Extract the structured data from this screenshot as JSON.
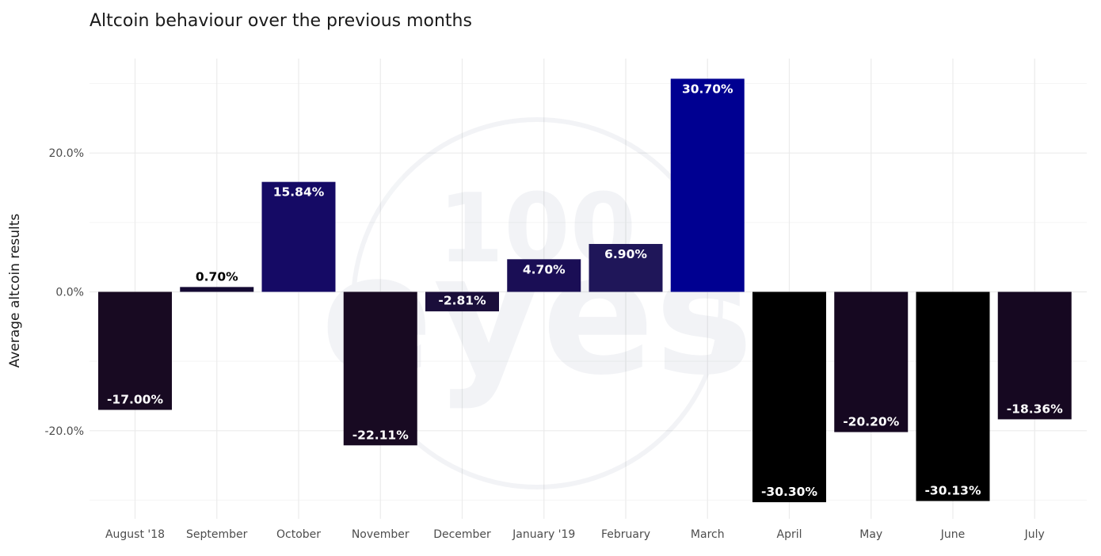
{
  "chart_data": {
    "type": "bar",
    "title": "Altcoin behaviour over the previous months",
    "xlabel": "",
    "ylabel": "Average altcoin results",
    "ylim": [
      -33,
      33
    ],
    "y_ticks": [
      {
        "value": 20,
        "label": "20.0%"
      },
      {
        "value": 0,
        "label": "0.0%"
      },
      {
        "value": -20,
        "label": "-20.0%"
      }
    ],
    "categories": [
      "August '18",
      "September",
      "October",
      "November",
      "December",
      "January '19",
      "February",
      "March",
      "April",
      "May",
      "June",
      "July"
    ],
    "values": [
      -17.0,
      0.7,
      15.84,
      -22.11,
      -2.81,
      4.7,
      6.9,
      30.7,
      -30.3,
      -20.2,
      -30.13,
      -18.36
    ],
    "labels": [
      "-17.00%",
      "0.70%",
      "15.84%",
      "-22.11%",
      "-2.81%",
      "4.70%",
      "6.90%",
      "30.70%",
      "-30.30%",
      "-20.20%",
      "-30.13%",
      "-18.36%"
    ],
    "bar_colors": [
      "#180a22",
      "#140a33",
      "#150a65",
      "#180a22",
      "#1a0e3a",
      "#1a0e55",
      "#1f1659",
      "#000091",
      "#000000",
      "#160821",
      "#000000",
      "#160821"
    ],
    "grid": true,
    "legend": "none",
    "watermark": "100 eyes"
  }
}
